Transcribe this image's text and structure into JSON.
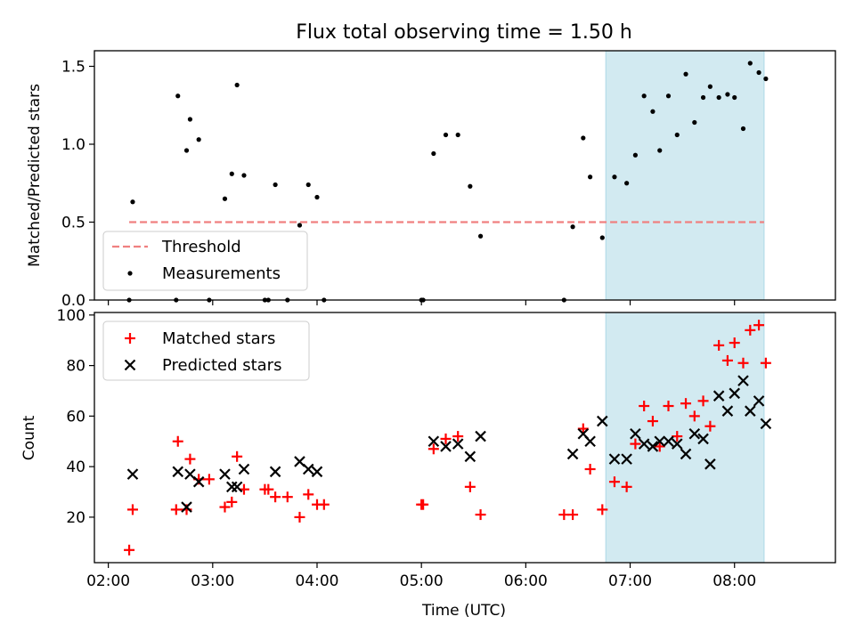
{
  "title": "Flux total observing time = 1.50 h",
  "chart_data": [
    {
      "type": "scatter",
      "panel": "top",
      "ylabel": "Matched/Predicted stars",
      "xlabel": "",
      "xlim": [
        "01:52",
        "08:58"
      ],
      "ylim": [
        0,
        1.6
      ],
      "yticks": [
        0.0,
        0.5,
        1.0,
        1.5
      ],
      "ytick_labels": [
        "0.0",
        "0.5",
        "1.0",
        "1.5"
      ],
      "threshold": {
        "name": "Threshold",
        "value": 0.5,
        "x_start": "02:12",
        "x_end": "08:17",
        "color": "#f08080"
      },
      "shaded_region": {
        "x_start": "06:46",
        "x_end": "08:17",
        "color": "#add8e6"
      },
      "legend": {
        "position": "lower-left",
        "entries": [
          "Threshold",
          "Measurements"
        ]
      },
      "series": [
        {
          "name": "Measurements",
          "color": "#000000",
          "points": [
            {
              "x": "02:12",
              "y": 0.0
            },
            {
              "x": "02:14",
              "y": 0.63
            },
            {
              "x": "02:39",
              "y": 0.0
            },
            {
              "x": "02:40",
              "y": 1.31
            },
            {
              "x": "02:45",
              "y": 0.96
            },
            {
              "x": "02:47",
              "y": 1.16
            },
            {
              "x": "02:52",
              "y": 1.03
            },
            {
              "x": "02:58",
              "y": 0.0
            },
            {
              "x": "03:07",
              "y": 0.65
            },
            {
              "x": "03:11",
              "y": 0.81
            },
            {
              "x": "03:14",
              "y": 1.38
            },
            {
              "x": "03:18",
              "y": 0.8
            },
            {
              "x": "03:30",
              "y": 0.0
            },
            {
              "x": "03:32",
              "y": 0.0
            },
            {
              "x": "03:36",
              "y": 0.74
            },
            {
              "x": "03:43",
              "y": 0.0
            },
            {
              "x": "03:50",
              "y": 0.48
            },
            {
              "x": "03:55",
              "y": 0.74
            },
            {
              "x": "04:00",
              "y": 0.66
            },
            {
              "x": "04:04",
              "y": 0.0
            },
            {
              "x": "05:00",
              "y": 0.0
            },
            {
              "x": "05:01",
              "y": 0.0
            },
            {
              "x": "05:07",
              "y": 0.94
            },
            {
              "x": "05:14",
              "y": 1.06
            },
            {
              "x": "05:21",
              "y": 1.06
            },
            {
              "x": "05:28",
              "y": 0.73
            },
            {
              "x": "05:34",
              "y": 0.41
            },
            {
              "x": "06:22",
              "y": 0.0
            },
            {
              "x": "06:27",
              "y": 0.47
            },
            {
              "x": "06:33",
              "y": 1.04
            },
            {
              "x": "06:37",
              "y": 0.79
            },
            {
              "x": "06:44",
              "y": 0.4
            },
            {
              "x": "06:51",
              "y": 0.79
            },
            {
              "x": "06:58",
              "y": 0.75
            },
            {
              "x": "07:03",
              "y": 0.93
            },
            {
              "x": "07:08",
              "y": 1.31
            },
            {
              "x": "07:13",
              "y": 1.21
            },
            {
              "x": "07:17",
              "y": 0.96
            },
            {
              "x": "07:22",
              "y": 1.31
            },
            {
              "x": "07:27",
              "y": 1.06
            },
            {
              "x": "07:32",
              "y": 1.45
            },
            {
              "x": "07:37",
              "y": 1.14
            },
            {
              "x": "07:42",
              "y": 1.3
            },
            {
              "x": "07:46",
              "y": 1.37
            },
            {
              "x": "07:51",
              "y": 1.3
            },
            {
              "x": "07:56",
              "y": 1.32
            },
            {
              "x": "08:00",
              "y": 1.3
            },
            {
              "x": "08:05",
              "y": 1.1
            },
            {
              "x": "08:09",
              "y": 1.52
            },
            {
              "x": "08:14",
              "y": 1.46
            },
            {
              "x": "08:18",
              "y": 1.42
            }
          ]
        }
      ]
    },
    {
      "type": "scatter",
      "panel": "bottom",
      "ylabel": "Count",
      "xlabel": "Time (UTC)",
      "xlim": [
        "01:52",
        "08:58"
      ],
      "xticks": [
        "02:00",
        "03:00",
        "04:00",
        "05:00",
        "06:00",
        "07:00",
        "08:00"
      ],
      "ylim": [
        2,
        101
      ],
      "yticks": [
        20,
        40,
        60,
        80,
        100
      ],
      "shaded_region": {
        "x_start": "06:46",
        "x_end": "08:17",
        "color": "#add8e6"
      },
      "legend": {
        "position": "top-left",
        "entries": [
          "Matched stars",
          "Predicted stars"
        ]
      },
      "series": [
        {
          "name": "Matched stars",
          "marker": "plus",
          "color": "#ff0000",
          "points": [
            {
              "x": "02:12",
              "y": 7
            },
            {
              "x": "02:14",
              "y": 23
            },
            {
              "x": "02:39",
              "y": 23
            },
            {
              "x": "02:40",
              "y": 50
            },
            {
              "x": "02:45",
              "y": 23
            },
            {
              "x": "02:47",
              "y": 43
            },
            {
              "x": "02:52",
              "y": 35
            },
            {
              "x": "02:58",
              "y": 35
            },
            {
              "x": "03:07",
              "y": 24
            },
            {
              "x": "03:11",
              "y": 26
            },
            {
              "x": "03:14",
              "y": 44
            },
            {
              "x": "03:18",
              "y": 31
            },
            {
              "x": "03:30",
              "y": 31
            },
            {
              "x": "03:32",
              "y": 31
            },
            {
              "x": "03:36",
              "y": 28
            },
            {
              "x": "03:43",
              "y": 28
            },
            {
              "x": "03:50",
              "y": 20
            },
            {
              "x": "03:55",
              "y": 29
            },
            {
              "x": "04:00",
              "y": 25
            },
            {
              "x": "04:04",
              "y": 25
            },
            {
              "x": "05:00",
              "y": 25
            },
            {
              "x": "05:01",
              "y": 25
            },
            {
              "x": "05:07",
              "y": 47
            },
            {
              "x": "05:14",
              "y": 51
            },
            {
              "x": "05:21",
              "y": 52
            },
            {
              "x": "05:28",
              "y": 32
            },
            {
              "x": "05:34",
              "y": 21
            },
            {
              "x": "06:22",
              "y": 21
            },
            {
              "x": "06:27",
              "y": 21
            },
            {
              "x": "06:33",
              "y": 55
            },
            {
              "x": "06:37",
              "y": 39
            },
            {
              "x": "06:44",
              "y": 23
            },
            {
              "x": "06:51",
              "y": 34
            },
            {
              "x": "06:58",
              "y": 32
            },
            {
              "x": "07:03",
              "y": 49
            },
            {
              "x": "07:08",
              "y": 64
            },
            {
              "x": "07:13",
              "y": 58
            },
            {
              "x": "07:17",
              "y": 48
            },
            {
              "x": "07:22",
              "y": 64
            },
            {
              "x": "07:27",
              "y": 52
            },
            {
              "x": "07:32",
              "y": 65
            },
            {
              "x": "07:37",
              "y": 60
            },
            {
              "x": "07:42",
              "y": 66
            },
            {
              "x": "07:46",
              "y": 56
            },
            {
              "x": "07:51",
              "y": 88
            },
            {
              "x": "07:56",
              "y": 82
            },
            {
              "x": "08:00",
              "y": 89
            },
            {
              "x": "08:05",
              "y": 81
            },
            {
              "x": "08:09",
              "y": 94
            },
            {
              "x": "08:14",
              "y": 96
            },
            {
              "x": "08:18",
              "y": 81
            }
          ]
        },
        {
          "name": "Predicted stars",
          "marker": "x",
          "color": "#000000",
          "points": [
            {
              "x": "02:14",
              "y": 37
            },
            {
              "x": "02:40",
              "y": 38
            },
            {
              "x": "02:45",
              "y": 24
            },
            {
              "x": "02:47",
              "y": 37
            },
            {
              "x": "02:52",
              "y": 34
            },
            {
              "x": "03:07",
              "y": 37
            },
            {
              "x": "03:11",
              "y": 32
            },
            {
              "x": "03:14",
              "y": 32
            },
            {
              "x": "03:18",
              "y": 39
            },
            {
              "x": "03:36",
              "y": 38
            },
            {
              "x": "03:50",
              "y": 42
            },
            {
              "x": "03:55",
              "y": 39
            },
            {
              "x": "04:00",
              "y": 38
            },
            {
              "x": "05:07",
              "y": 50
            },
            {
              "x": "05:14",
              "y": 48
            },
            {
              "x": "05:21",
              "y": 49
            },
            {
              "x": "05:28",
              "y": 44
            },
            {
              "x": "05:34",
              "y": 52
            },
            {
              "x": "06:27",
              "y": 45
            },
            {
              "x": "06:33",
              "y": 53
            },
            {
              "x": "06:37",
              "y": 50
            },
            {
              "x": "06:44",
              "y": 58
            },
            {
              "x": "06:51",
              "y": 43
            },
            {
              "x": "06:58",
              "y": 43
            },
            {
              "x": "07:03",
              "y": 53
            },
            {
              "x": "07:08",
              "y": 49
            },
            {
              "x": "07:13",
              "y": 48
            },
            {
              "x": "07:17",
              "y": 50
            },
            {
              "x": "07:22",
              "y": 50
            },
            {
              "x": "07:27",
              "y": 49
            },
            {
              "x": "07:32",
              "y": 45
            },
            {
              "x": "07:37",
              "y": 53
            },
            {
              "x": "07:42",
              "y": 51
            },
            {
              "x": "07:46",
              "y": 41
            },
            {
              "x": "07:51",
              "y": 68
            },
            {
              "x": "07:56",
              "y": 62
            },
            {
              "x": "08:00",
              "y": 69
            },
            {
              "x": "08:05",
              "y": 74
            },
            {
              "x": "08:09",
              "y": 62
            },
            {
              "x": "08:14",
              "y": 66
            },
            {
              "x": "08:18",
              "y": 57
            }
          ]
        }
      ]
    }
  ]
}
